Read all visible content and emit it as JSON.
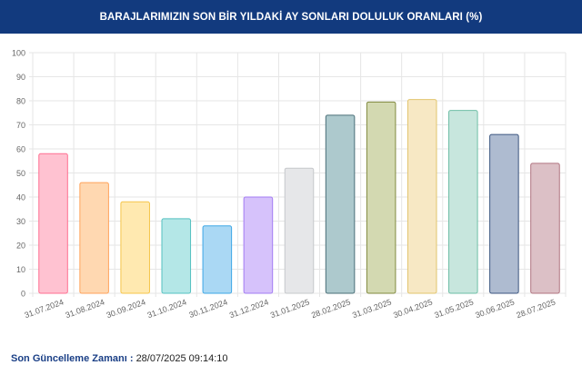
{
  "header": {
    "title": "BARAJLARIMIZIN SON BİR YILDAKİ AY SONLARI DOLULUK ORANLARI (%)"
  },
  "footer": {
    "label": "Son Güncelleme Zamanı",
    "separator": ":",
    "value": "28/07/2025 09:14:10"
  },
  "chart_data": {
    "type": "bar",
    "title": "BARAJLARIMIZIN SON BİR YILDAKİ AY SONLARI DOLULUK ORANLARI (%)",
    "xlabel": "",
    "ylabel": "",
    "ylim": [
      0,
      100
    ],
    "yticks": [
      "0",
      "10",
      "20",
      "30",
      "40",
      "50",
      "60",
      "70",
      "80",
      "90",
      "100"
    ],
    "grid": true,
    "categories": [
      "31.07.2024",
      "31.08.2024",
      "30.09.2024",
      "31.10.2024",
      "30.11.2024",
      "31.12.2024",
      "31.01.2025",
      "28.02.2025",
      "31.03.2025",
      "30.04.2025",
      "31.05.2025",
      "30.06.2025",
      "28.07.2025"
    ],
    "values": [
      58,
      46,
      38,
      31,
      28,
      40,
      52,
      74,
      79.5,
      80.5,
      76,
      66,
      54
    ],
    "colors": [
      {
        "fill": "#ffc2d1",
        "stroke": "#ff6f91"
      },
      {
        "fill": "#ffd8b1",
        "stroke": "#ffa25a"
      },
      {
        "fill": "#ffe9b0",
        "stroke": "#f5c54a"
      },
      {
        "fill": "#b4e7e7",
        "stroke": "#55c1c1"
      },
      {
        "fill": "#aad8f4",
        "stroke": "#3ea7e6"
      },
      {
        "fill": "#d6c2fb",
        "stroke": "#a37cf3"
      },
      {
        "fill": "#e6e7e9",
        "stroke": "#c6c8cb"
      },
      {
        "fill": "#adc9cd",
        "stroke": "#4a6f78"
      },
      {
        "fill": "#d3d9b1",
        "stroke": "#818a3f"
      },
      {
        "fill": "#f7e8c4",
        "stroke": "#e2c56d"
      },
      {
        "fill": "#c7e6dd",
        "stroke": "#6ebfa6"
      },
      {
        "fill": "#aebbd0",
        "stroke": "#3c5680"
      },
      {
        "fill": "#dcc0c6",
        "stroke": "#b07480"
      }
    ]
  }
}
